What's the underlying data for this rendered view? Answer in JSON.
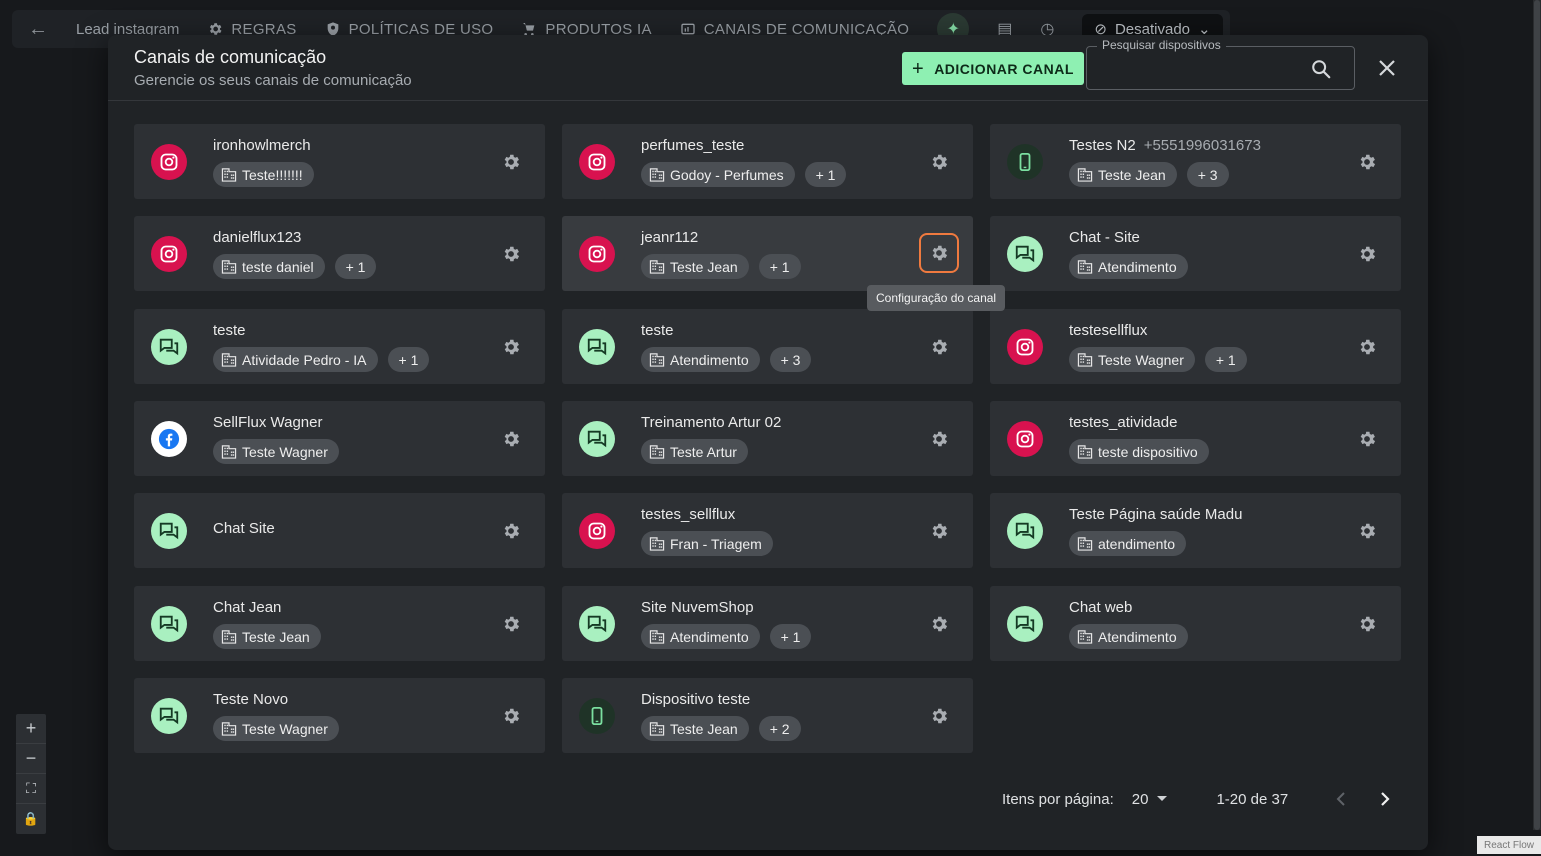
{
  "toolbar": {
    "back_icon": "arrow-left-icon",
    "items": [
      {
        "label": "Lead instagram",
        "icon": ""
      },
      {
        "label": "REGRAS",
        "icon": "gear-icon"
      },
      {
        "label": "POLÍTICAS DE USO",
        "icon": "policy-icon"
      },
      {
        "label": "PRODUTOS IA",
        "icon": "cart-icon"
      },
      {
        "label": "CANAIS DE COMUNICAÇÃO",
        "icon": "channels-icon"
      }
    ],
    "status_label": "Desativado"
  },
  "modal": {
    "title": "Canais de comunicação",
    "subtitle": "Gerencie os seus canais de comunicação",
    "add_label": "ADICIONAR CANAL",
    "search_label": "Pesquisar dispositivos",
    "search_value": ""
  },
  "tooltip": "Configuração do canal",
  "channels": [
    {
      "name": "ironhowlmerch",
      "phone": "",
      "type": "instagram",
      "tag": "Teste!!!!!!!",
      "more": ""
    },
    {
      "name": "perfumes_teste",
      "phone": "",
      "type": "instagram",
      "tag": "Godoy - Perfumes",
      "more": "+ 1"
    },
    {
      "name": "Testes N2",
      "phone": "+5551996031673",
      "type": "device",
      "tag": "Teste Jean",
      "more": "+ 3"
    },
    {
      "name": "danielflux123",
      "phone": "",
      "type": "instagram",
      "tag": "teste daniel",
      "more": "+ 1"
    },
    {
      "name": "jeanr112",
      "phone": "",
      "type": "instagram",
      "tag": "Teste Jean",
      "more": "+ 1"
    },
    {
      "name": "Chat - Site",
      "phone": "",
      "type": "chat",
      "tag": "Atendimento",
      "more": ""
    },
    {
      "name": "teste",
      "phone": "",
      "type": "chat",
      "tag": "Atividade Pedro - IA",
      "more": "+ 1"
    },
    {
      "name": "teste",
      "phone": "",
      "type": "chat",
      "tag": "Atendimento",
      "more": "+ 3"
    },
    {
      "name": "testesellflux",
      "phone": "",
      "type": "instagram",
      "tag": "Teste Wagner",
      "more": "+ 1"
    },
    {
      "name": "SellFlux Wagner",
      "phone": "",
      "type": "facebook",
      "tag": "Teste Wagner",
      "more": ""
    },
    {
      "name": "Treinamento Artur 02",
      "phone": "",
      "type": "chat",
      "tag": "Teste Artur",
      "more": ""
    },
    {
      "name": "testes_atividade",
      "phone": "",
      "type": "instagram",
      "tag": "teste dispositivo",
      "more": ""
    },
    {
      "name": "Chat Site",
      "phone": "",
      "type": "chat",
      "tag": "",
      "more": ""
    },
    {
      "name": "testes_sellflux",
      "phone": "",
      "type": "instagram",
      "tag": "Fran - Triagem",
      "more": ""
    },
    {
      "name": "Teste Página saúde Madu",
      "phone": "",
      "type": "chat",
      "tag": "atendimento",
      "more": ""
    },
    {
      "name": "Chat Jean",
      "phone": "",
      "type": "chat",
      "tag": "Teste Jean",
      "more": ""
    },
    {
      "name": "Site NuvemShop",
      "phone": "",
      "type": "chat",
      "tag": "Atendimento",
      "more": "+ 1"
    },
    {
      "name": "Chat web",
      "phone": "",
      "type": "chat",
      "tag": "Atendimento",
      "more": ""
    },
    {
      "name": "Teste Novo",
      "phone": "",
      "type": "chat",
      "tag": "Teste Wagner",
      "more": ""
    },
    {
      "name": "Dispositivo teste",
      "phone": "",
      "type": "device",
      "tag": "Teste Jean",
      "more": "+ 2"
    }
  ],
  "pagination": {
    "per_page_label": "Itens por página:",
    "per_page_value": "20",
    "range": "1-20 de 37"
  },
  "canvas": {
    "attribution": "React Flow"
  },
  "colors": {
    "accent": "#8ef0b2",
    "instagram": "#d8124f",
    "focus_ring": "#f07a3f"
  }
}
